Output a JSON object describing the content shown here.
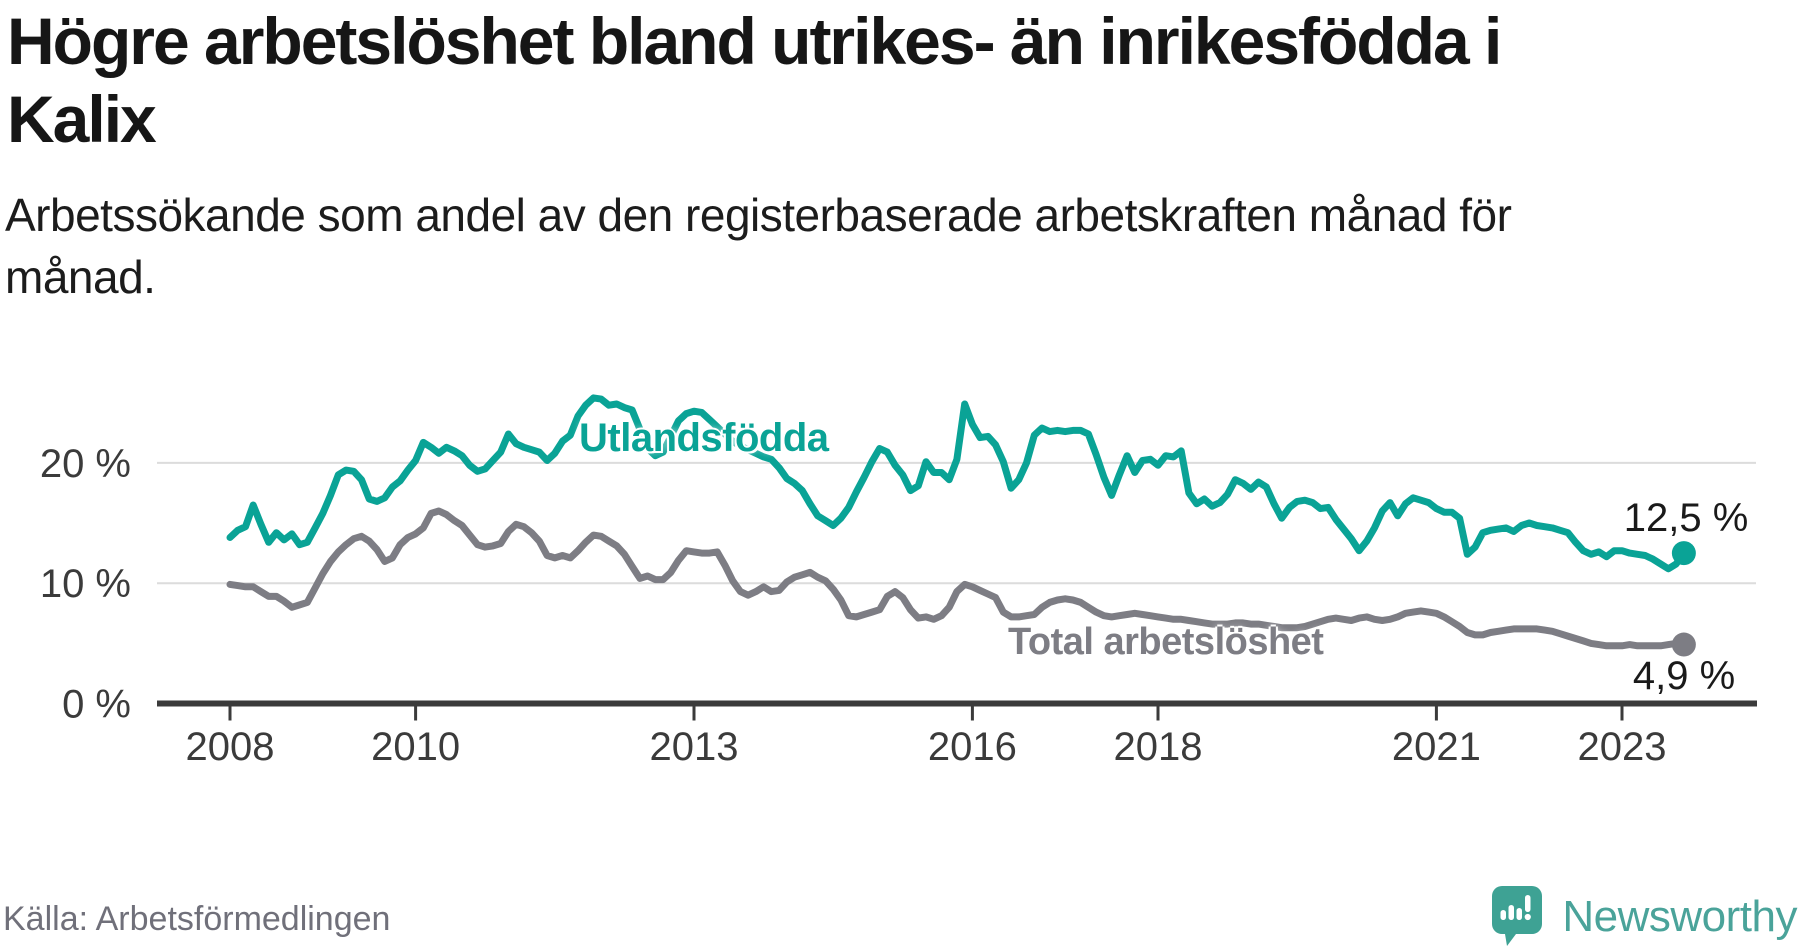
{
  "header": {
    "title_lines": [
      "Högre arbetslöshet bland utrikes- än inrikesfödda i",
      "Kalix"
    ],
    "subtitle_lines": [
      "Arbetssökande som andel av den registerbaserade arbetskraften månad för",
      "månad."
    ]
  },
  "footer": {
    "source": "Källa: Arbetsförmedlingen",
    "brand": "Newsworthy",
    "logo_icon": "newsworthy-speech-bubble-bar-chart-icon"
  },
  "colors": {
    "title_text": "#161616",
    "axis": "#3b3b3b",
    "gridline": "#dcdcdc",
    "teal_series": "#0aa396",
    "gray_series": "#7d7d84",
    "value_label": "#1a1a1a",
    "source_text": "#70707a",
    "brand_teal": "#4aa39a"
  },
  "chart_data": {
    "type": "line",
    "title": "Högre arbetslöshet bland utrikes- än inrikesfödda i Kalix",
    "subtitle": "Arbetssökande som andel av den registerbaserade arbetskraften månad för månad.",
    "xlabel": "",
    "ylabel": "",
    "ylim": [
      0,
      27.5
    ],
    "xlim": [
      2008,
      2023.92
    ],
    "grid": "horizontal",
    "legend_position": "inline-labels",
    "x_axis": {
      "ticks": [
        {
          "year": 2008,
          "label": "2008"
        },
        {
          "year": 2010,
          "label": "2010"
        },
        {
          "year": 2013,
          "label": "2013"
        },
        {
          "year": 2016,
          "label": "2016"
        },
        {
          "year": 2018,
          "label": "2018"
        },
        {
          "year": 2021,
          "label": "2021"
        },
        {
          "year": 2023,
          "label": "2023"
        }
      ]
    },
    "y_axis": {
      "ticks": [
        {
          "value": 0,
          "label": "0 %"
        },
        {
          "value": 10,
          "label": "10 %"
        },
        {
          "value": 20,
          "label": "20 %"
        }
      ]
    },
    "x_start": 2008.0,
    "x_step_years": 0.0833333,
    "series": [
      {
        "name": "Total arbetslöshet",
        "label_text": "Total arbetslöshet",
        "end_label": "4,9 %",
        "color": "#7d7d84",
        "values": [
          9.9,
          9.8,
          9.7,
          9.7,
          9.3,
          8.9,
          8.9,
          8.5,
          8.0,
          8.2,
          8.4,
          9.6,
          10.8,
          11.8,
          12.6,
          13.2,
          13.7,
          13.9,
          13.5,
          12.8,
          11.8,
          12.1,
          13.2,
          13.8,
          14.1,
          14.6,
          15.8,
          16.0,
          15.7,
          15.2,
          14.8,
          14.0,
          13.2,
          13.0,
          13.1,
          13.3,
          14.3,
          14.9,
          14.7,
          14.2,
          13.5,
          12.3,
          12.1,
          12.3,
          12.1,
          12.7,
          13.4,
          14.0,
          13.9,
          13.5,
          13.1,
          12.4,
          11.4,
          10.4,
          10.6,
          10.3,
          10.3,
          10.9,
          11.9,
          12.7,
          12.6,
          12.5,
          12.5,
          12.6,
          11.5,
          10.2,
          9.3,
          9.0,
          9.3,
          9.7,
          9.3,
          9.4,
          10.1,
          10.5,
          10.7,
          10.9,
          10.5,
          10.2,
          9.5,
          8.6,
          7.3,
          7.2,
          7.4,
          7.6,
          7.8,
          8.9,
          9.3,
          8.8,
          7.8,
          7.1,
          7.2,
          7.0,
          7.3,
          8.0,
          9.3,
          9.9,
          9.7,
          9.4,
          9.1,
          8.8,
          7.6,
          7.2,
          7.2,
          7.3,
          7.4,
          8.0,
          8.4,
          8.6,
          8.7,
          8.6,
          8.4,
          8.0,
          7.6,
          7.3,
          7.2,
          7.3,
          7.4,
          7.5,
          7.4,
          7.3,
          7.2,
          7.1,
          7.0,
          7.0,
          6.9,
          6.8,
          6.7,
          6.6,
          6.6,
          6.6,
          6.7,
          6.7,
          6.6,
          6.6,
          6.5,
          6.4,
          6.3,
          6.3,
          6.3,
          6.4,
          6.6,
          6.8,
          7.0,
          7.1,
          7.0,
          6.9,
          7.1,
          7.2,
          7.0,
          6.9,
          7.0,
          7.2,
          7.5,
          7.6,
          7.7,
          7.6,
          7.5,
          7.2,
          6.8,
          6.4,
          5.9,
          5.7,
          5.7,
          5.9,
          6.0,
          6.1,
          6.2,
          6.2,
          6.2,
          6.2,
          6.1,
          6.0,
          5.8,
          5.6,
          5.4,
          5.2,
          5.0,
          4.9,
          4.8,
          4.8,
          4.8,
          4.9,
          4.8,
          4.8,
          4.8,
          4.8,
          4.9,
          5.0,
          4.9
        ]
      },
      {
        "name": "Utlandsfödda",
        "label_text": "Utlandsfödda",
        "end_label": "12,5 %",
        "color": "#0aa396",
        "values": [
          13.8,
          14.4,
          14.7,
          16.5,
          14.9,
          13.4,
          14.2,
          13.6,
          14.1,
          13.2,
          13.4,
          14.6,
          15.8,
          17.3,
          19.0,
          19.4,
          19.3,
          18.6,
          17.0,
          16.8,
          17.1,
          18.0,
          18.5,
          19.4,
          20.2,
          21.7,
          21.3,
          20.8,
          21.3,
          21.0,
          20.6,
          19.8,
          19.3,
          19.5,
          20.2,
          20.9,
          22.4,
          21.6,
          21.3,
          21.1,
          20.9,
          20.2,
          20.8,
          21.8,
          22.3,
          23.9,
          24.8,
          25.4,
          25.3,
          24.8,
          24.9,
          24.6,
          24.4,
          22.8,
          21.2,
          20.6,
          20.9,
          22.2,
          23.5,
          24.1,
          24.3,
          24.2,
          23.6,
          23.0,
          22.4,
          21.8,
          21.4,
          21.1,
          20.8,
          20.5,
          20.3,
          19.6,
          18.7,
          18.3,
          17.7,
          16.6,
          15.6,
          15.2,
          14.8,
          15.4,
          16.3,
          17.6,
          18.8,
          20.1,
          21.2,
          20.9,
          19.8,
          19.0,
          17.7,
          18.1,
          20.1,
          19.2,
          19.2,
          18.6,
          20.3,
          24.9,
          23.2,
          22.1,
          22.2,
          21.5,
          20.1,
          17.9,
          18.6,
          20.0,
          22.3,
          22.9,
          22.6,
          22.7,
          22.6,
          22.7,
          22.7,
          22.4,
          20.7,
          18.8,
          17.3,
          19.0,
          20.6,
          19.2,
          20.2,
          20.3,
          19.8,
          20.6,
          20.5,
          21.0,
          17.5,
          16.6,
          17.0,
          16.4,
          16.7,
          17.4,
          18.6,
          18.3,
          17.8,
          18.4,
          18.0,
          16.6,
          15.4,
          16.3,
          16.8,
          16.9,
          16.7,
          16.2,
          16.3,
          15.3,
          14.5,
          13.7,
          12.7,
          13.5,
          14.6,
          16.0,
          16.7,
          15.6,
          16.6,
          17.1,
          16.9,
          16.7,
          16.2,
          15.9,
          15.9,
          15.4,
          12.4,
          13.0,
          14.2,
          14.4,
          14.5,
          14.6,
          14.3,
          14.8,
          15.0,
          14.8,
          14.7,
          14.6,
          14.4,
          14.2,
          13.4,
          12.7,
          12.4,
          12.6,
          12.2,
          12.7,
          12.7,
          12.5,
          12.4,
          12.3,
          12.0,
          11.6,
          11.2,
          11.6,
          12.5
        ]
      }
    ]
  }
}
